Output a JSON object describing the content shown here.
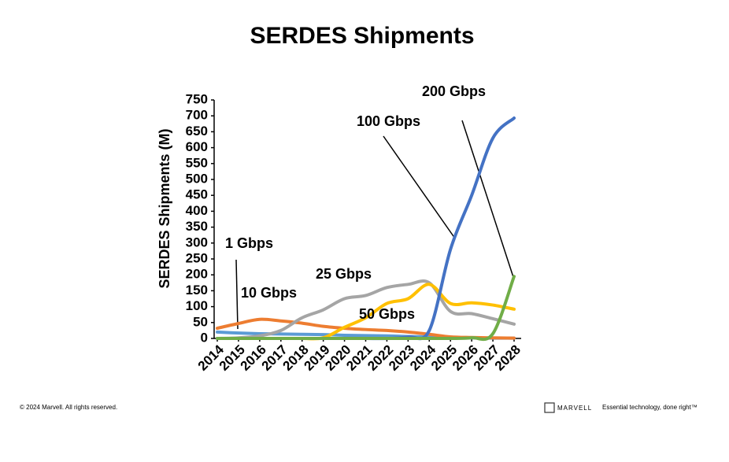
{
  "chart_data": {
    "type": "line",
    "title": "SERDES Shipments",
    "y_label": "SERDES Shipments (M)",
    "categories": [
      "2014",
      "2015",
      "2016",
      "2017",
      "2018",
      "2019",
      "2020",
      "2021",
      "2022",
      "2023",
      "2024",
      "2025",
      "2026",
      "2027",
      "2028"
    ],
    "ylim": [
      0,
      750
    ],
    "yticks": [
      0,
      50,
      100,
      150,
      200,
      250,
      300,
      350,
      400,
      450,
      500,
      550,
      600,
      650,
      700,
      750
    ],
    "grid": false,
    "series": [
      {
        "name": "1 Gbps",
        "color": "#5b9bd5",
        "values": [
          20,
          17,
          15,
          14,
          13,
          12,
          10,
          9,
          8,
          6,
          5,
          3,
          2,
          1,
          1
        ]
      },
      {
        "name": "10 Gbps",
        "color": "#ed7d31",
        "values": [
          32,
          47,
          60,
          55,
          48,
          38,
          32,
          28,
          25,
          20,
          13,
          5,
          3,
          2,
          1
        ]
      },
      {
        "name": "25 Gbps",
        "color": "#a5a5a5",
        "values": [
          0,
          2,
          8,
          25,
          65,
          90,
          125,
          135,
          160,
          170,
          175,
          85,
          78,
          62,
          45
        ]
      },
      {
        "name": "50 Gbps",
        "color": "#ffc000",
        "values": [
          0,
          0,
          0,
          0,
          0,
          2,
          35,
          65,
          110,
          125,
          170,
          110,
          112,
          105,
          92
        ]
      },
      {
        "name": "100 Gbps",
        "color": "#4472c4",
        "values": [
          0,
          0,
          0,
          0,
          0,
          0,
          0,
          0,
          0,
          5,
          25,
          280,
          450,
          630,
          693
        ]
      },
      {
        "name": "200 Gbps",
        "color": "#70ad47",
        "values": [
          0,
          0,
          0,
          0,
          0,
          0,
          0,
          0,
          0,
          0,
          0,
          0,
          2,
          15,
          195
        ]
      }
    ]
  },
  "footer": {
    "copyright": "© 2024 Marvell. All rights reserved.",
    "brand": "MARVELL",
    "tagline": "Essential technology, done right™"
  }
}
